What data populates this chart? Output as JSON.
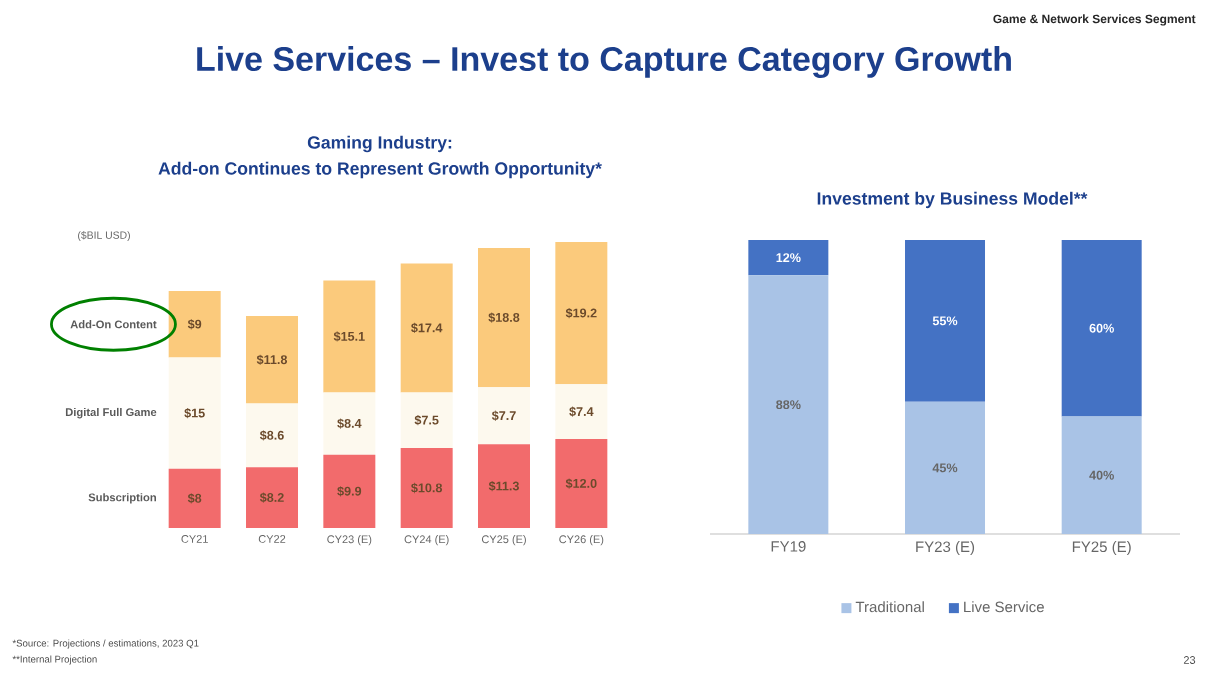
{
  "chart_data": [
    {
      "type": "bar",
      "title": "Gaming Industry:",
      "subtitle": "Add-on Continues to Represent Growth Opportunity*",
      "ylabel": "($BIL USD)",
      "stacked": true,
      "categories": [
        "CY21",
        "CY22",
        "CY23 (E)",
        "CY24 (E)",
        "CY25 (E)",
        "CY26 (E)"
      ],
      "series": [
        {
          "name": "Subscription",
          "color": "#f26b6c",
          "values": [
            8,
            8.2,
            9.9,
            10.8,
            11.3,
            12.0
          ],
          "value_labels": [
            "$8",
            "$8.2",
            "$9.9",
            "$10.8",
            "$11.3",
            "$12.0"
          ]
        },
        {
          "name": "Digital Full Game",
          "color": "#fdf9ee",
          "values": [
            15,
            8.6,
            8.4,
            7.5,
            7.7,
            7.4
          ],
          "value_labels": [
            "$15",
            "$8.6",
            "$8.4",
            "$7.5",
            "$7.7",
            "$7.4"
          ]
        },
        {
          "name": "Add-On Content",
          "color": "#fbca7c",
          "values": [
            9,
            11.8,
            15.1,
            17.4,
            18.8,
            19.2
          ],
          "value_labels": [
            "$9",
            "$11.8",
            "$15.1",
            "$17.4",
            "$18.8",
            "$19.2"
          ]
        }
      ],
      "annotations": [
        "Live Services – Invest to Capture Category Growth",
        "Game & Network Services Segment",
        "*Source: Projections / estimations, 2023 Q1",
        "**Internal Projection",
        "23"
      ]
    },
    {
      "type": "bar",
      "title": "Investment by Business Model**",
      "stacked": true,
      "legend": "bottom",
      "categories": [
        "FY19",
        "FY23 (E)",
        "FY25 (E)"
      ],
      "series": [
        {
          "name": "Traditional",
          "color": "#a9c3e6",
          "values": [
            88,
            45,
            40
          ],
          "value_labels": [
            "88%",
            "45%",
            "40%"
          ]
        },
        {
          "name": "Live Service",
          "color": "#4472c4",
          "values": [
            12,
            55,
            60
          ],
          "value_labels": [
            "12%",
            "55%",
            "60%"
          ]
        }
      ]
    }
  ]
}
